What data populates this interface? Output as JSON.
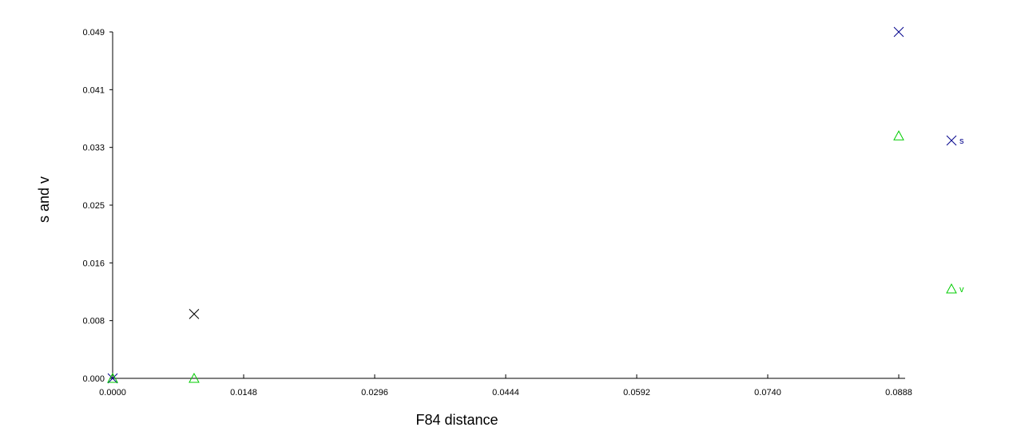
{
  "chart_data": {
    "type": "scatter",
    "xlabel": "F84 distance",
    "ylabel": "s and v",
    "xlim": [
      0,
      0.0888
    ],
    "ylim": [
      0,
      0.049
    ],
    "x_ticks": [
      "0.0000",
      "0.0148",
      "0.0296",
      "0.0444",
      "0.0592",
      "0.0740",
      "0.0888"
    ],
    "y_ticks": [
      "0.000",
      "0.008",
      "0.016",
      "0.025",
      "0.033",
      "0.041",
      "0.049"
    ],
    "grid": false,
    "legend_position": "right",
    "series": [
      {
        "name": "s",
        "marker": "x",
        "color": "#00008b",
        "points": [
          {
            "x": 0.0,
            "y": 0.0
          },
          {
            "x": 0.0092,
            "y": 0.0091
          },
          {
            "x": 0.0888,
            "y": 0.049
          }
        ]
      },
      {
        "name": "v",
        "marker": "triangle",
        "color": "#00cc00",
        "points": [
          {
            "x": 0.0,
            "y": 0.0
          },
          {
            "x": 0.0092,
            "y": 0.0
          },
          {
            "x": 0.0888,
            "y": 0.0343
          }
        ]
      }
    ],
    "point_colors": {
      "early_s": "#000000"
    }
  }
}
